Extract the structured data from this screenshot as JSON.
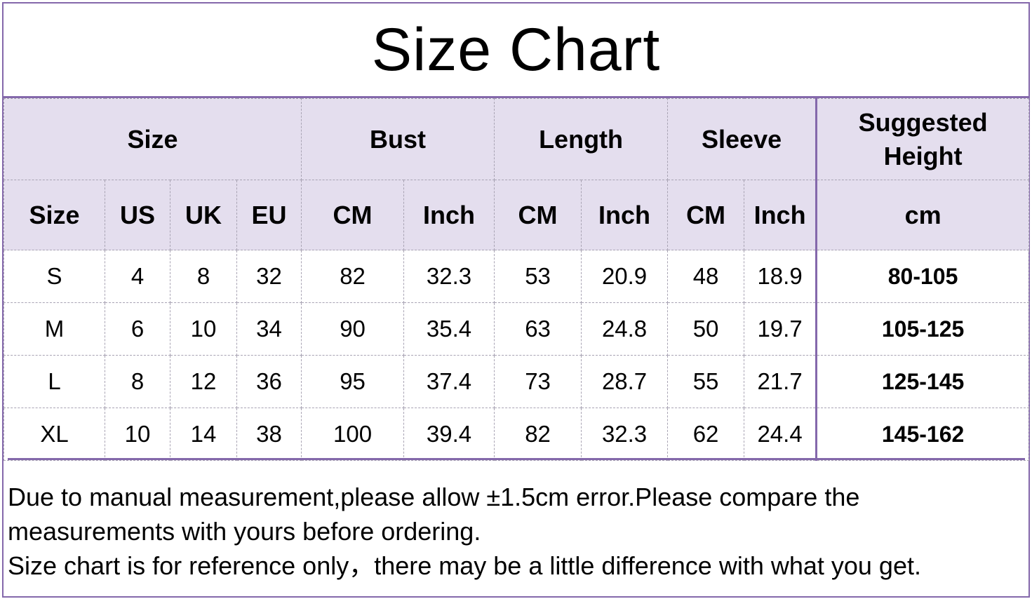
{
  "title": "Size Chart",
  "colors": {
    "header_bg": "#e4deee",
    "border": "#8468ab"
  },
  "header_groups": [
    {
      "label": "Size",
      "span": 4
    },
    {
      "label": "Bust",
      "span": 2
    },
    {
      "label": "Length",
      "span": 2
    },
    {
      "label": "Sleeve",
      "span": 2
    },
    {
      "label": "Suggested Height",
      "span": 1
    }
  ],
  "sub_headers": [
    "Size",
    "US",
    "UK",
    "EU",
    "CM",
    "Inch",
    "CM",
    "Inch",
    "CM",
    "Inch",
    "cm"
  ],
  "rows": [
    [
      "S",
      "4",
      "8",
      "32",
      "82",
      "32.3",
      "53",
      "20.9",
      "48",
      "18.9",
      "80-105"
    ],
    [
      "M",
      "6",
      "10",
      "34",
      "90",
      "35.4",
      "63",
      "24.8",
      "50",
      "19.7",
      "105-125"
    ],
    [
      "L",
      "8",
      "12",
      "36",
      "95",
      "37.4",
      "73",
      "28.7",
      "55",
      "21.7",
      "125-145"
    ],
    [
      "XL",
      "10",
      "14",
      "38",
      "100",
      "39.4",
      "82",
      "32.3",
      "62",
      "24.4",
      "145-162"
    ]
  ],
  "notes": [
    "Due to manual measurement,please allow ±1.5cm error.Please compare the",
    "measurements with yours before ordering.",
    "Size chart is for reference only，there may be a little difference with what you get."
  ]
}
